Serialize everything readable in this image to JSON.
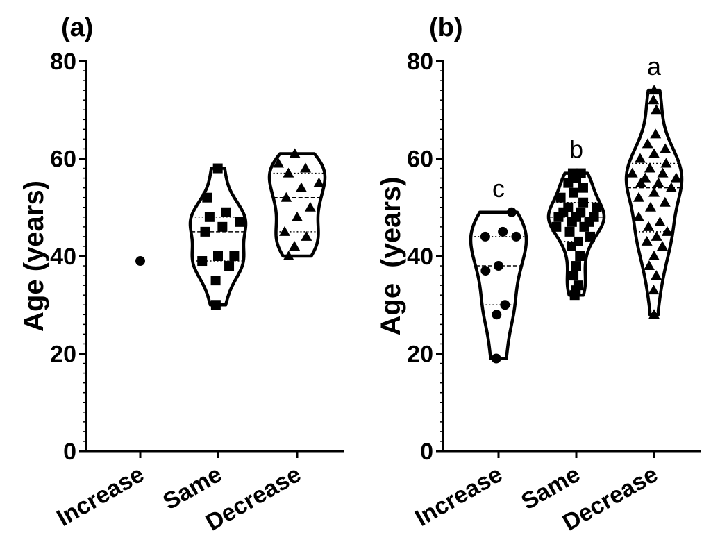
{
  "chart_data": [
    {
      "type": "violin",
      "panel_label": "(a)",
      "ylabel": "Age (years)",
      "ylim": [
        0,
        80
      ],
      "yticks": [
        0,
        20,
        40,
        60,
        80
      ],
      "categories": [
        "Increase",
        "Same",
        "Decrease"
      ],
      "significance": [
        "",
        "",
        ""
      ],
      "marker_shapes": [
        "circle",
        "square",
        "triangle"
      ],
      "series": [
        {
          "category": "Increase",
          "values": [
            39
          ]
        },
        {
          "category": "Same",
          "values": [
            30,
            35,
            38,
            39,
            40,
            40,
            45,
            46,
            47,
            48,
            49,
            52,
            58
          ]
        },
        {
          "category": "Decrease",
          "values": [
            40,
            42,
            44,
            45,
            48,
            50,
            52,
            54,
            55,
            57,
            58,
            59,
            61
          ]
        }
      ]
    },
    {
      "type": "violin",
      "panel_label": "(b)",
      "ylabel": "Age  (years)",
      "ylim": [
        0,
        80
      ],
      "yticks": [
        0,
        20,
        40,
        60,
        80
      ],
      "categories": [
        "Increase",
        "Same",
        "Decrease"
      ],
      "significance": [
        "c",
        "b",
        "a"
      ],
      "marker_shapes": [
        "circle",
        "square",
        "triangle"
      ],
      "series": [
        {
          "category": "Increase",
          "values": [
            19,
            28,
            30,
            37,
            38,
            44,
            44,
            45,
            49
          ]
        },
        {
          "category": "Same",
          "values": [
            32,
            33,
            34,
            36,
            38,
            40,
            42,
            43,
            44,
            45,
            46,
            46,
            47,
            47,
            48,
            48,
            48,
            49,
            49,
            50,
            50,
            51,
            52,
            53,
            54,
            55,
            56,
            57,
            57
          ]
        },
        {
          "category": "Decrease",
          "values": [
            28,
            33,
            36,
            38,
            40,
            42,
            43,
            44,
            45,
            46,
            47,
            48,
            50,
            51,
            52,
            53,
            54,
            55,
            55,
            56,
            56,
            57,
            57,
            58,
            59,
            60,
            61,
            62,
            63,
            65,
            70,
            72,
            74
          ]
        }
      ]
    }
  ]
}
